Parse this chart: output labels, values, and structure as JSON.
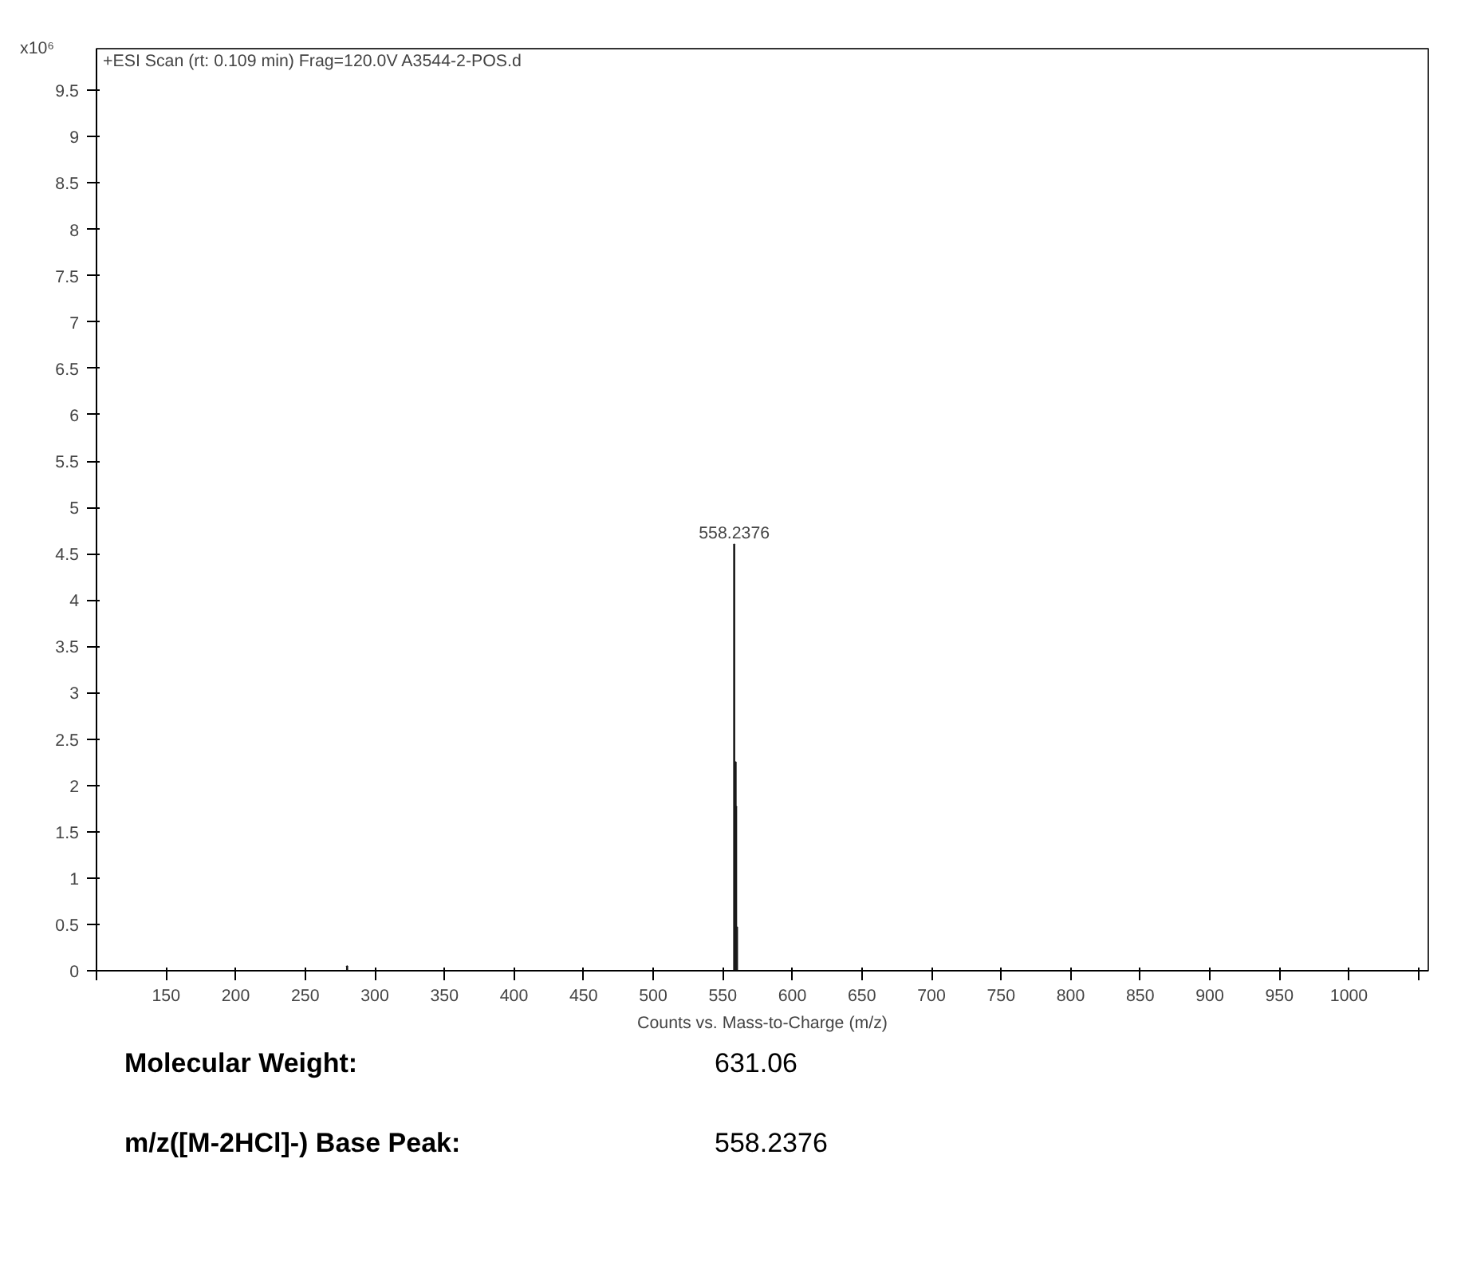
{
  "chart_data": {
    "type": "bar",
    "title": "+ESI Scan (rt: 0.109 min) Frag=120.0V A3544-2-POS.d",
    "xlabel": "Counts vs. Mass-to-Charge (m/z)",
    "ylabel": "x10⁶",
    "x": [
      280.1,
      558.2376,
      559.24,
      559.6,
      560.24
    ],
    "values": [
      0.05,
      4.6,
      2.25,
      1.77,
      0.47
    ],
    "color": "#1a1a1a",
    "xlim": [
      100,
      1057
    ],
    "xticks": [
      {
        "value": 100,
        "label": null
      },
      150,
      200,
      250,
      300,
      350,
      400,
      450,
      500,
      550,
      600,
      650,
      700,
      750,
      800,
      850,
      900,
      950,
      1000,
      {
        "value": 1050,
        "label": null
      }
    ],
    "ylim": [
      0,
      9.95
    ],
    "yticks": [
      0,
      0.5,
      1,
      1.5,
      2,
      2.5,
      3,
      3.5,
      4,
      4.5,
      5,
      5.5,
      6,
      6.5,
      7,
      7.5,
      8,
      8.5,
      9,
      9.5
    ],
    "grid": false,
    "annotations": [
      {
        "text": "558.2376",
        "x": 558.2376,
        "y": 4.6
      },
      "Molecular Weight:",
      "631.06",
      "m/z([M-2HCl]-) Base Peak:",
      "558.2376"
    ]
  }
}
